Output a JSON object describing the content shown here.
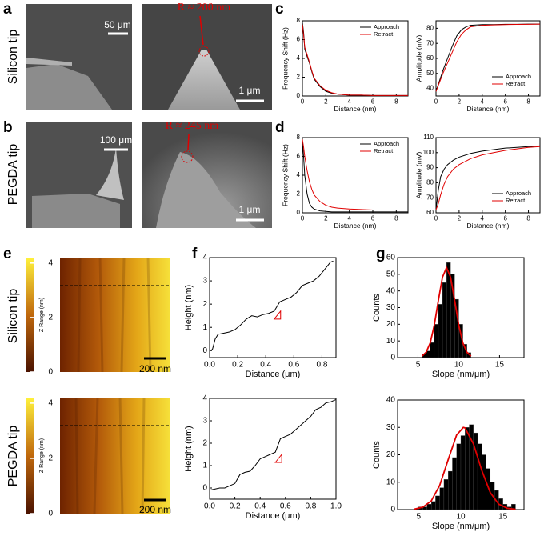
{
  "panel_labels": [
    "a",
    "b",
    "c",
    "d",
    "e",
    "f",
    "g"
  ],
  "row_labels": [
    "Silicon tip",
    "PEGDA tip",
    "Silicon tip",
    "PEGDA tip"
  ],
  "sem": [
    {
      "scale_bar": "50 μm"
    },
    {
      "scale_bar": "1 μm",
      "annotation": "R ≈ 200 nm"
    },
    {
      "scale_bar": "100 μm"
    },
    {
      "scale_bar": "1 μm",
      "annotation": "R ≈ 245 nm"
    }
  ],
  "afm": [
    {
      "colorbar_label": "Z Range (nm)",
      "colorbar_lim": [
        0,
        4.2
      ],
      "colorbar_ticks": [
        0,
        2,
        4
      ],
      "scale_bar": "200 nm"
    },
    {
      "colorbar_label": "Z Range (nm)",
      "colorbar_lim": [
        0,
        4.2
      ],
      "colorbar_ticks": [
        0,
        2,
        4
      ],
      "scale_bar": "200 nm"
    }
  ],
  "chart_data": [
    {
      "type": "line",
      "xlabel": "Distance (nm)",
      "ylabel": "Frequency Shift (Hz)",
      "xlim": [
        0,
        9
      ],
      "ylim": [
        0,
        8
      ],
      "xticks": [
        0,
        2,
        4,
        6,
        8
      ],
      "yticks": [
        0,
        2,
        4,
        6,
        8
      ],
      "legend": "upper right",
      "x": [
        0,
        0.1,
        0.2,
        0.4,
        0.6,
        0.8,
        1,
        1.5,
        2,
        2.5,
        3,
        4,
        5,
        6,
        7,
        8,
        9
      ],
      "series": [
        {
          "name": "Approach",
          "color": "#000000",
          "values": [
            7.8,
            6.8,
            5,
            4.2,
            3.5,
            2.6,
            1.8,
            1,
            0.5,
            0.3,
            0.2,
            0.1,
            0.1,
            0.05,
            0.05,
            0.05,
            0.05
          ]
        },
        {
          "name": "Retract",
          "color": "#e00000",
          "values": [
            7.6,
            6.5,
            5.2,
            4.4,
            3.6,
            2.7,
            1.9,
            1.1,
            0.6,
            0.35,
            0.2,
            0.1,
            0.1,
            0.05,
            0.05,
            0.05,
            0.05
          ]
        }
      ]
    },
    {
      "type": "line",
      "xlabel": "Distance (nm)",
      "ylabel": "Amplitude (mV)",
      "xlim": [
        0,
        9
      ],
      "ylim": [
        35,
        85
      ],
      "xticks": [
        0,
        2,
        4,
        6,
        8
      ],
      "yticks": [
        40,
        50,
        60,
        70,
        80
      ],
      "legend": "lower right",
      "x": [
        0,
        0.3,
        0.6,
        1,
        1.4,
        1.8,
        2.2,
        2.6,
        3,
        4,
        5,
        6,
        7,
        8,
        9
      ],
      "series": [
        {
          "name": "Approach",
          "color": "#000000",
          "values": [
            38,
            45,
            52,
            60,
            68,
            75,
            79,
            81,
            82,
            82.5,
            82.5,
            82.7,
            82.7,
            82.8,
            82.8
          ]
        },
        {
          "name": "Retract",
          "color": "#e00000",
          "values": [
            38,
            44,
            50,
            57,
            64,
            71,
            76,
            79,
            81,
            82,
            82.3,
            82.5,
            82.6,
            82.7,
            82.8
          ]
        }
      ]
    },
    {
      "type": "line",
      "xlabel": "Distance (nm)",
      "ylabel": "Frequency Shift (Hz)",
      "xlim": [
        0,
        9
      ],
      "ylim": [
        0,
        8
      ],
      "xticks": [
        0,
        2,
        4,
        6,
        8
      ],
      "yticks": [
        0,
        2,
        4,
        6,
        8
      ],
      "legend": "upper right",
      "x": [
        0,
        0.1,
        0.2,
        0.4,
        0.6,
        0.8,
        1,
        1.5,
        2,
        2.5,
        3,
        4,
        5,
        6,
        7,
        8,
        9
      ],
      "series": [
        {
          "name": "Approach",
          "color": "#000000",
          "values": [
            7.6,
            6,
            4,
            2,
            1,
            0.6,
            0.4,
            0.2,
            0.15,
            0.1,
            0.1,
            0.1,
            0.1,
            0.1,
            0.1,
            0.1,
            0.1
          ]
        },
        {
          "name": "Retract",
          "color": "#e00000",
          "values": [
            7.8,
            7,
            6,
            4.5,
            3.3,
            2.5,
            1.9,
            1.2,
            0.8,
            0.6,
            0.5,
            0.4,
            0.35,
            0.3,
            0.3,
            0.3,
            0.3
          ]
        }
      ]
    },
    {
      "type": "line",
      "xlabel": "Distance (nm)",
      "ylabel": "Amplitude (mV)",
      "xlim": [
        0,
        9
      ],
      "ylim": [
        60,
        110
      ],
      "xticks": [
        0,
        2,
        4,
        6,
        8
      ],
      "yticks": [
        60,
        70,
        80,
        90,
        100,
        110
      ],
      "legend": "lower right",
      "x": [
        0,
        0.2,
        0.4,
        0.7,
        1,
        1.5,
        2,
        3,
        4,
        5,
        6,
        7,
        8,
        9
      ],
      "series": [
        {
          "name": "Approach",
          "color": "#000000",
          "values": [
            62,
            75,
            84,
            89,
            92,
            95,
            97,
            99.5,
            101,
            102,
            103,
            103.5,
            104,
            104.5
          ]
        },
        {
          "name": "Retract",
          "color": "#e00000",
          "values": [
            62,
            66,
            72,
            79,
            84,
            89,
            92,
            96,
            98.5,
            100,
            101.5,
            102.5,
            103.5,
            104
          ]
        }
      ]
    },
    {
      "type": "line",
      "xlabel": "Distance (μm)",
      "ylabel": "Height (nm)",
      "xlim": [
        0,
        0.9
      ],
      "ylim": [
        -0.3,
        4
      ],
      "xticks": [
        {
          "value": 0,
          "label": "0.0"
        },
        0.2,
        0.4,
        0.6,
        0.8
      ],
      "yticks": [
        0,
        1,
        2,
        3,
        4
      ],
      "x": [
        0,
        0.02,
        0.04,
        0.06,
        0.1,
        0.14,
        0.18,
        0.22,
        0.26,
        0.3,
        0.34,
        0.38,
        0.42,
        0.46,
        0.5,
        0.54,
        0.58,
        0.62,
        0.66,
        0.7,
        0.74,
        0.78,
        0.82,
        0.86,
        0.88
      ],
      "series": [
        {
          "color": "#000000",
          "values": [
            0,
            0.05,
            0.5,
            0.7,
            0.75,
            0.8,
            0.9,
            1.1,
            1.35,
            1.5,
            1.45,
            1.55,
            1.6,
            1.7,
            2.1,
            2.2,
            2.3,
            2.5,
            2.8,
            2.9,
            3.0,
            3.2,
            3.5,
            3.8,
            3.85
          ]
        }
      ]
    },
    {
      "type": "line",
      "xlabel": "Distance (μm)",
      "ylabel": "Height (nm)",
      "xlim": [
        0,
        1
      ],
      "ylim": [
        -0.5,
        4
      ],
      "xticks": [
        {
          "value": 0,
          "label": "0.0"
        },
        0.2,
        0.4,
        0.6,
        0.8,
        {
          "value": 1,
          "label": "1.0"
        }
      ],
      "yticks": [
        0,
        1,
        2,
        3,
        4
      ],
      "x": [
        0,
        0.04,
        0.08,
        0.12,
        0.16,
        0.2,
        0.24,
        0.28,
        0.32,
        0.36,
        0.4,
        0.44,
        0.48,
        0.52,
        0.56,
        0.6,
        0.64,
        0.68,
        0.72,
        0.76,
        0.8,
        0.84,
        0.88,
        0.92,
        0.96,
        1.0
      ],
      "series": [
        {
          "color": "#000000",
          "values": [
            -0.1,
            -0.05,
            0,
            0,
            0.1,
            0.2,
            0.6,
            0.7,
            0.75,
            1.0,
            1.3,
            1.4,
            1.5,
            1.6,
            2.2,
            2.3,
            2.4,
            2.6,
            2.8,
            3.0,
            3.2,
            3.5,
            3.6,
            3.8,
            3.85,
            3.95
          ]
        }
      ]
    },
    {
      "type": "histogram",
      "xlabel": "Slope (nm/μm)",
      "ylabel": "Counts",
      "xlim": [
        2.5,
        18
      ],
      "ylim": [
        0,
        60
      ],
      "xticks": [
        5,
        10,
        15
      ],
      "yticks": [
        0,
        10,
        20,
        30,
        40,
        50,
        60
      ],
      "color": "#000000",
      "bins": [
        5.5,
        6,
        6.5,
        7,
        7.5,
        8,
        8.5,
        9,
        9.5,
        10,
        10.5,
        11,
        11.5
      ],
      "values": [
        2,
        4,
        9,
        20,
        32,
        45,
        57,
        50,
        35,
        20,
        8,
        3
      ],
      "fit": {
        "color": "#e00000",
        "x": [
          5.5,
          6,
          6.5,
          7,
          7.5,
          8,
          8.5,
          9,
          9.5,
          10,
          10.5,
          11,
          11.5
        ],
        "values": [
          0.9,
          3.2,
          8.8,
          19.5,
          34.3,
          48.2,
          54,
          48.2,
          34.3,
          19.5,
          8.8,
          3.2,
          0.9
        ]
      }
    },
    {
      "type": "histogram",
      "xlabel": "Slope (nm/μm)",
      "ylabel": "Counts",
      "xlim": [
        2.5,
        17.5
      ],
      "ylim": [
        0,
        40
      ],
      "xticks": [
        5,
        10,
        15
      ],
      "yticks": [
        0,
        10,
        20,
        30,
        40
      ],
      "color": "#000000",
      "bins": [
        5,
        5.5,
        6,
        6.5,
        7,
        7.5,
        8,
        8.5,
        9,
        9.5,
        10,
        10.5,
        11,
        11.5,
        12,
        12.5,
        13,
        13.5,
        14,
        14.5,
        15,
        15.5,
        16,
        16.5
      ],
      "values": [
        1,
        1,
        2,
        3,
        5,
        8,
        11,
        14,
        19,
        24,
        27,
        30,
        31,
        28,
        24,
        20,
        15,
        10,
        7,
        4,
        2,
        1,
        2
      ],
      "fit": {
        "color": "#e00000",
        "x": [
          4.5,
          5.5,
          6.5,
          7.5,
          8.5,
          9.5,
          10.3,
          10.5,
          11.5,
          12.5,
          13.5,
          14.5,
          15.5,
          16.5
        ],
        "values": [
          0.2,
          0.9,
          3.2,
          8.9,
          18.2,
          27.2,
          30,
          29.8,
          24.0,
          14.2,
          6.2,
          2.0,
          0.5,
          0.1
        ]
      }
    }
  ]
}
